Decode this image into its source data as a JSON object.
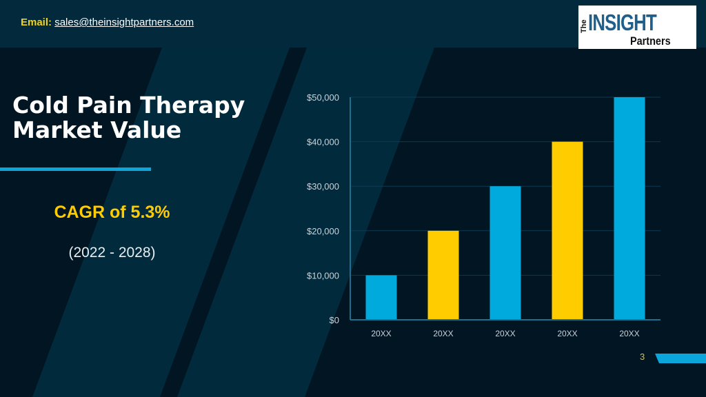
{
  "header": {
    "email_label": "Email:",
    "email_address": "sales@theinsightpartners.com",
    "logo": {
      "the": "The",
      "insight": "INSIGHT",
      "partners": "Partners"
    }
  },
  "slide": {
    "title_line1": "Cold Pain Therapy",
    "title_line2": "Market Value",
    "cagr": "CAGR of  5.3%",
    "period": "(2022 - 2028)",
    "page_number": "3"
  },
  "colors": {
    "cyan": "#00aadd",
    "yellow": "#ffcc00",
    "background": "#011522"
  },
  "chart_data": {
    "type": "bar",
    "categories": [
      "20XX",
      "20XX",
      "20XX",
      "20XX",
      "20XX"
    ],
    "values": [
      10000,
      20000,
      30000,
      40000,
      50000
    ],
    "bar_colors": [
      "#00aadd",
      "#ffcc00",
      "#00aadd",
      "#ffcc00",
      "#00aadd"
    ],
    "yticks": [
      0,
      10000,
      20000,
      30000,
      40000,
      50000
    ],
    "ytick_labels": [
      "$0",
      "$10,000",
      "$20,000",
      "$30,000",
      "$40,000",
      "$50,000"
    ],
    "ylim": [
      0,
      50000
    ],
    "grid": true,
    "title": "",
    "xlabel": "",
    "ylabel": ""
  }
}
